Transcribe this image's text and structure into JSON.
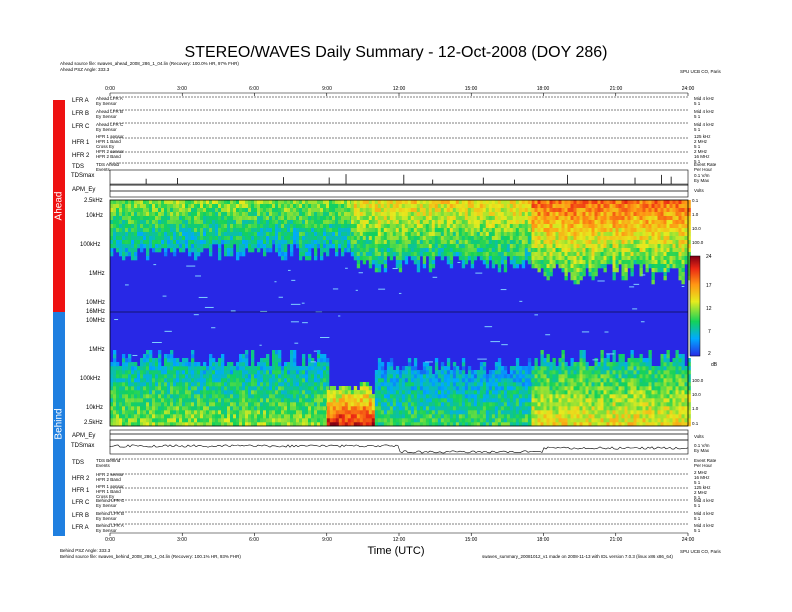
{
  "header": {
    "title": "STEREO/WAVES Daily Summary - 12-Oct-2008 (DOY 286)",
    "ahead_source": "Ahead source file: swaves_ahead_2008_286_1_04.lin (Recovery: 100.0% HR, 97% FHR)",
    "ahead_angle": "Ahead PSZ Angle: 333.3",
    "ahead_credit": "SPU UCB CO, Paris"
  },
  "footer": {
    "behind_angle": "Behind PSZ Angle: 333.3",
    "behind_source": "Behind source file: swaves_behind_2008_286_1_04.lin (Recovery: 100.1% HR, 93% FHR)",
    "behind_credit": "SPU UCB CO, Paris",
    "production_note": "swaves_summary_20081012_v1 made on 2008-11-13 with IDL version 7.0.3 (linux x86 x86_64)"
  },
  "side_labels": {
    "ahead": "Ahead",
    "behind": "Behind"
  },
  "top_rows": [
    {
      "label": "LFR A",
      "sub": [
        "Ahead LFR A",
        "Ey Sensor"
      ],
      "right": [
        "Mid 4 kHz",
        "5 1"
      ]
    },
    {
      "label": "LFR B",
      "sub": [
        "Ahead LFR B",
        "Ey Sensor"
      ],
      "right": [
        "Mid 4 kHz",
        "5 1"
      ]
    },
    {
      "label": "LFR C",
      "sub": [
        "Ahead LFR C",
        "Ey Sensor"
      ],
      "right": [
        "Mid 4 kHz",
        "5 1"
      ]
    },
    {
      "label": "HFR 1",
      "sub": [
        "HFR 1 sensor",
        "HFR 1 Band",
        "Cross Ey"
      ],
      "right": [
        "125 kHz",
        "2 MHz",
        "5 1"
      ]
    },
    {
      "label": "HFR 2",
      "sub": [
        "HFR 2 sensor",
        "HFR 2 Band"
      ],
      "right": [
        "2 MHz",
        "16 MHz",
        "5 1"
      ]
    },
    {
      "label": "TDS",
      "sub": [
        "TDS Ahead",
        "Events"
      ],
      "right": [
        "Event Rate",
        "Per Hour"
      ]
    }
  ],
  "bottom_rows": [
    {
      "label": "TDS",
      "sub": [
        "TDS Behind",
        "Events"
      ],
      "right": [
        "Event Rate",
        "Per Hour"
      ]
    },
    {
      "label": "HFR 2",
      "sub": [
        "HFR 2 sensor",
        "HFR 2 Band"
      ],
      "right": [
        "2 MHz",
        "16 MHz",
        "5 1"
      ]
    },
    {
      "label": "HFR 1",
      "sub": [
        "HFR 1 sensor",
        "HFR 1 Band",
        "Cross Ey"
      ],
      "right": [
        "125 kHz",
        "2 MHz",
        "5 1"
      ]
    },
    {
      "label": "LFR C",
      "sub": [
        "Behind LFR C",
        "Ey Sensor"
      ],
      "right": [
        "Mid 4 kHz",
        "5 1"
      ]
    },
    {
      "label": "LFR B",
      "sub": [
        "Behind LFR B",
        "Ey Sensor"
      ],
      "right": [
        "Mid 4 kHz",
        "5 1"
      ]
    },
    {
      "label": "LFR A",
      "sub": [
        "Behind LFR A",
        "Ey Sensor"
      ],
      "right": [
        "Mid 4 kHz",
        "5 1"
      ]
    }
  ],
  "time_panels": {
    "tdsmax_top": {
      "label": "TDSmax",
      "right": [
        "0.1 V/m",
        "Ey Max"
      ]
    },
    "apm_top": {
      "label": "APM_Ey",
      "right": [
        "Volts"
      ]
    },
    "apm_bottom": {
      "label": "APM_Ey",
      "right": [
        "Volts"
      ]
    },
    "tdsmax_bottom": {
      "label": "TDSmax",
      "right": [
        "0.1 V/m",
        "Ey Max"
      ]
    }
  },
  "spectrogram": {
    "ahead_freq_labels": [
      "2.5kHz",
      "10kHz",
      "100kHz",
      "1MHz",
      "10MHz",
      "16MHz"
    ],
    "behind_freq_labels": [
      "10MHz",
      "1MHz",
      "100kHz",
      "10kHz",
      "2.5kHz"
    ],
    "ahead_right_scale": [
      "0.1",
      "1.0",
      "10.0",
      "100.0"
    ],
    "behind_right_scale": [
      "100.0",
      "10.0",
      "1.0",
      "0.1"
    ],
    "colorbar": {
      "ticks": [
        "24",
        "17",
        "12",
        "7",
        "2"
      ],
      "unit": "dB"
    }
  },
  "axis": {
    "ticks": [
      "0:00",
      "3:00",
      "6:00",
      "9:00",
      "12:00",
      "15:00",
      "18:00",
      "21:00",
      "24:00"
    ],
    "xlabel": "Time (UTC)"
  },
  "chart_data": {
    "type": "heatmap",
    "title": "STEREO/WAVES Daily Summary - 12-Oct-2008 (DOY 286)",
    "xlabel": "Time (UTC)",
    "x_range_hours": [
      0,
      24
    ],
    "colorbar": {
      "range_db": [
        2,
        24
      ],
      "ticks": [
        24,
        17,
        12,
        7,
        2
      ],
      "unit": "dB"
    },
    "panels": [
      {
        "name": "Ahead",
        "freq_labels": [
          "2.5kHz",
          "10kHz",
          "100kHz",
          "1MHz",
          "10MHz",
          "16MHz"
        ],
        "features": [
          {
            "t_start_h": 0,
            "t_end_h": 10,
            "band": "2.5kHz-100kHz",
            "level_db": 12
          },
          {
            "t_start_h": 10,
            "t_end_h": 17.5,
            "band": "2.5kHz-300kHz",
            "level_db": 15
          },
          {
            "t_start_h": 17.5,
            "t_end_h": 24,
            "band": "2.5kHz-400kHz",
            "level_db": 19
          }
        ]
      },
      {
        "name": "Behind",
        "freq_labels": [
          "10MHz",
          "1MHz",
          "100kHz",
          "10kHz",
          "2.5kHz"
        ],
        "features": [
          {
            "t_start_h": 0,
            "t_end_h": 9,
            "band": "2.5kHz-200kHz",
            "level_db": 12
          },
          {
            "t_start_h": 9,
            "t_end_h": 11,
            "band": "2.5kHz-20kHz",
            "level_db": 22
          },
          {
            "t_start_h": 11,
            "t_end_h": 17.5,
            "band": "2.5kHz-150kHz",
            "level_db": 10
          },
          {
            "t_start_h": 17.5,
            "t_end_h": 24,
            "band": "2.5kHz-200kHz",
            "level_db": 15
          }
        ]
      }
    ]
  }
}
